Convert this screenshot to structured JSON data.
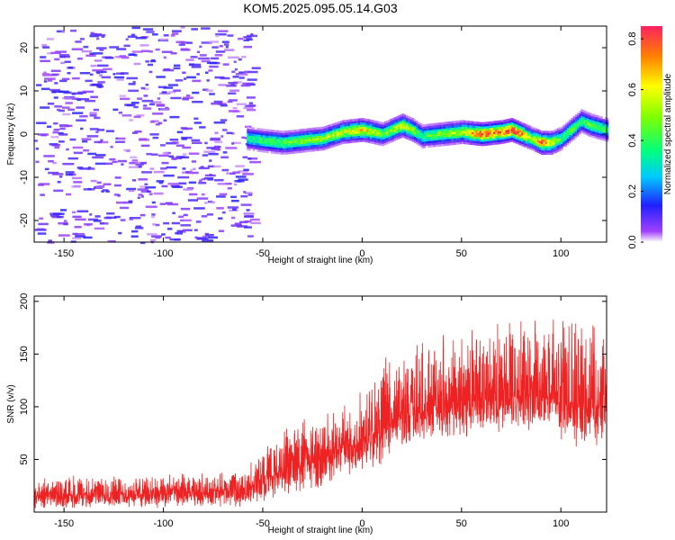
{
  "title": "KOM5.2025.095.05.14.G03",
  "chart_data": [
    {
      "type": "heatmap",
      "xlabel": "Height of straight line (km)",
      "ylabel": "Frequency (Hz)",
      "xlim": [
        -165,
        123
      ],
      "ylim": [
        -25,
        25
      ],
      "x_ticks": [
        -150,
        -100,
        -50,
        0,
        50,
        100
      ],
      "y_ticks": [
        -20,
        -10,
        0,
        10,
        20
      ],
      "grid": false,
      "colorbar": {
        "label": "Normalized spectral amplitude",
        "range": [
          0,
          0.85
        ],
        "ticks": [
          0.0,
          0.2,
          0.4,
          0.6,
          0.8
        ]
      },
      "ridge": {
        "x_start": -58,
        "x": [
          -58,
          -50,
          -40,
          -30,
          -20,
          -10,
          0,
          10,
          20,
          25,
          30,
          40,
          50,
          60,
          70,
          75,
          80,
          85,
          90,
          95,
          100,
          105,
          110,
          115,
          123
        ],
        "freq": [
          -1,
          -1.5,
          -2,
          -1.5,
          -1,
          0.5,
          1,
          0,
          2,
          1,
          -0.5,
          0,
          0.5,
          0,
          0.5,
          1,
          0,
          -1,
          -2,
          -2,
          -1,
          1,
          3,
          2,
          1
        ],
        "peak_amplitude": [
          0.35,
          0.4,
          0.45,
          0.5,
          0.5,
          0.55,
          0.65,
          0.45,
          0.6,
          0.5,
          0.4,
          0.5,
          0.55,
          0.8,
          0.75,
          0.85,
          0.7,
          0.5,
          0.75,
          0.6,
          0.4,
          0.45,
          0.4,
          0.45,
          0.4
        ]
      },
      "noise_region_x": [
        -165,
        -55
      ]
    },
    {
      "type": "line",
      "xlabel": "Height of straight line (km)",
      "ylabel": "SNR (v/v)",
      "xlim": [
        -165,
        123
      ],
      "ylim": [
        0,
        205
      ],
      "x_ticks": [
        -150,
        -100,
        -50,
        0,
        50,
        100
      ],
      "y_ticks": [
        50,
        100,
        150,
        200
      ],
      "grid": false,
      "series": [
        {
          "color": "#ee2222",
          "envelope": {
            "x": [
              -165,
              -140,
              -110,
              -80,
              -60,
              -50,
              -40,
              -30,
              -20,
              -10,
              0,
              10,
              20,
              30,
              40,
              50,
              60,
              70,
              80,
              90,
              100,
              110,
              123
            ],
            "low": [
              3,
              3,
              3,
              3,
              4,
              8,
              12,
              18,
              22,
              30,
              38,
              45,
              55,
              62,
              68,
              70,
              72,
              75,
              75,
              70,
              65,
              60,
              60
            ],
            "mean": [
              15,
              16,
              17,
              18,
              20,
              30,
              38,
              45,
              50,
              60,
              68,
              80,
              90,
              95,
              100,
              105,
              105,
              108,
              110,
              110,
              105,
              100,
              100
            ],
            "high": [
              30,
              32,
              33,
              33,
              35,
              55,
              70,
              80,
              85,
              95,
              110,
              130,
              150,
              155,
              160,
              160,
              165,
              170,
              170,
              170,
              168,
              165,
              165
            ]
          }
        }
      ]
    }
  ]
}
